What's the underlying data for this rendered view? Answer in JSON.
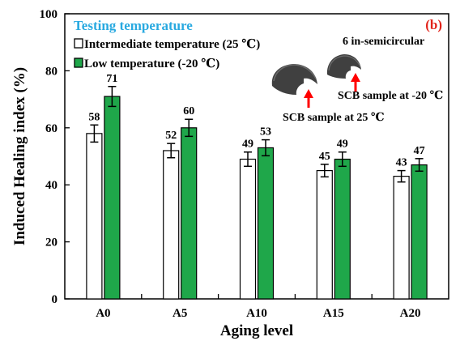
{
  "chart_data": {
    "type": "bar",
    "categories": [
      "A0",
      "A5",
      "A10",
      "A15",
      "A20"
    ],
    "series": [
      {
        "name": "Intermediate temperature (25 ℃)",
        "values": [
          58,
          52,
          49,
          45,
          43
        ],
        "errors": [
          3,
          2.5,
          2.5,
          2.2,
          2
        ],
        "color": "#ffffff",
        "stroke": "#000000"
      },
      {
        "name": "Low temperature (-20 ℃)",
        "values": [
          71,
          60,
          53,
          49,
          47
        ],
        "errors": [
          3.5,
          3,
          2.8,
          2.5,
          2.2
        ],
        "color": "#1fa74a",
        "stroke": "#000000"
      }
    ],
    "title": "",
    "xlabel": "Aging level",
    "ylabel": "Induced Healing index (%)",
    "ylim": [
      0,
      100
    ],
    "yticks": [
      0,
      20,
      40,
      60,
      80,
      100
    ],
    "grid": false,
    "legend": {
      "title": "Testing temperature",
      "title_color": "#28a9e0",
      "placement": "top-left"
    },
    "panel_tag": {
      "text": "(b)",
      "color": "#e2231a"
    },
    "annotations": {
      "sample_title": "6 in-semicircular",
      "label_25": "SCB sample at 25 ℃",
      "label_m20": "SCB sample at -20 ℃",
      "arrow_color": "#ff0000",
      "sample_color": "#404040"
    }
  }
}
